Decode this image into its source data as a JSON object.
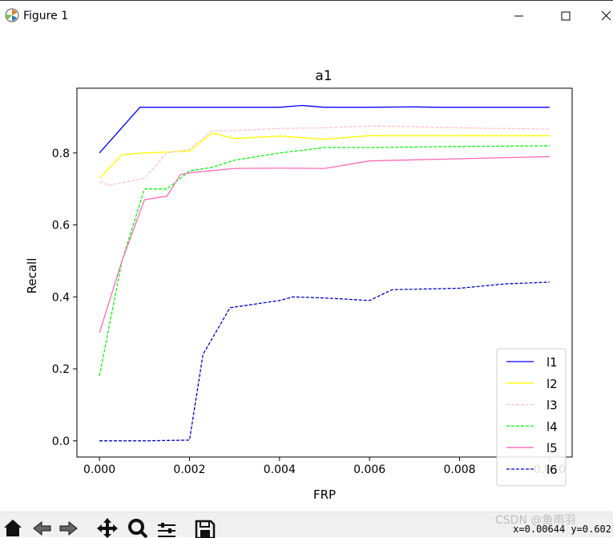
{
  "window": {
    "title": "Figure 1",
    "icons": [
      "matplotlib-icon",
      "minimize-icon",
      "maximize-icon",
      "close-icon"
    ]
  },
  "toolbar": {
    "icons": [
      "home-icon",
      "back-icon",
      "forward-icon",
      "pan-icon",
      "zoom-icon",
      "configure-subplots-icon",
      "save-icon"
    ],
    "coordinates": "x=0.00644 y=0.602"
  },
  "watermark": "CSDN @鱼雨羽",
  "chart_data": {
    "type": "line",
    "title": "a1",
    "xlabel": "FRP",
    "ylabel": "Recall",
    "xlim": [
      -0.0005,
      0.0105
    ],
    "ylim": [
      -0.045,
      0.98
    ],
    "xticks": [
      0.0,
      0.002,
      0.004,
      0.006,
      0.008,
      0.01
    ],
    "xtick_labels": [
      "0.000",
      "0.002",
      "0.004",
      "0.006",
      "0.008",
      "0.010"
    ],
    "yticks": [
      0.0,
      0.2,
      0.4,
      0.6,
      0.8
    ],
    "ytick_labels": [
      "0.0",
      "0.2",
      "0.4",
      "0.6",
      "0.8"
    ],
    "grid": false,
    "legend_position": "lower-right",
    "series": [
      {
        "name": "l1",
        "color": "#0000ff",
        "dash": "solid",
        "x": [
          0,
          0.0009,
          0.002,
          0.004,
          0.0045,
          0.005,
          0.006,
          0.007,
          0.0075,
          0.008,
          0.009,
          0.01
        ],
        "y": [
          0.8,
          0.927,
          0.927,
          0.927,
          0.932,
          0.927,
          0.927,
          0.928,
          0.927,
          0.927,
          0.927,
          0.927
        ]
      },
      {
        "name": "l2",
        "color": "#ffff00",
        "dash": "solid",
        "x": [
          0,
          0.0005,
          0.001,
          0.002,
          0.0025,
          0.003,
          0.004,
          0.005,
          0.006,
          0.007,
          0.008,
          0.01
        ],
        "y": [
          0.73,
          0.795,
          0.8,
          0.805,
          0.855,
          0.84,
          0.847,
          0.838,
          0.848,
          0.848,
          0.848,
          0.848
        ]
      },
      {
        "name": "l3",
        "color": "#ffc0cb",
        "dash": "dashed",
        "x": [
          0,
          0.0002,
          0.001,
          0.0015,
          0.002,
          0.0025,
          0.003,
          0.004,
          0.005,
          0.006,
          0.007,
          0.008,
          0.01
        ],
        "y": [
          0.72,
          0.71,
          0.73,
          0.8,
          0.81,
          0.862,
          0.862,
          0.868,
          0.87,
          0.875,
          0.873,
          0.87,
          0.866
        ]
      },
      {
        "name": "l4",
        "color": "#00ff00",
        "dash": "dashed",
        "x": [
          0,
          0.0005,
          0.001,
          0.0015,
          0.002,
          0.0025,
          0.003,
          0.004,
          0.005,
          0.006,
          0.008,
          0.01
        ],
        "y": [
          0.18,
          0.5,
          0.7,
          0.7,
          0.75,
          0.76,
          0.78,
          0.8,
          0.815,
          0.815,
          0.818,
          0.82
        ]
      },
      {
        "name": "l5",
        "color": "#ff69b4",
        "dash": "solid",
        "x": [
          0,
          0.0005,
          0.001,
          0.0015,
          0.0018,
          0.002,
          0.003,
          0.004,
          0.005,
          0.006,
          0.008,
          0.01
        ],
        "y": [
          0.3,
          0.5,
          0.67,
          0.68,
          0.74,
          0.745,
          0.757,
          0.758,
          0.757,
          0.778,
          0.784,
          0.79
        ]
      },
      {
        "name": "l6",
        "color": "#0000cd",
        "dash": "dashed",
        "x": [
          0,
          0.001,
          0.002,
          0.0023,
          0.0029,
          0.004,
          0.0043,
          0.005,
          0.006,
          0.0065,
          0.008,
          0.009,
          0.01
        ],
        "y": [
          0.0,
          0.0,
          0.002,
          0.24,
          0.37,
          0.39,
          0.4,
          0.397,
          0.39,
          0.42,
          0.424,
          0.436,
          0.441
        ]
      }
    ]
  }
}
